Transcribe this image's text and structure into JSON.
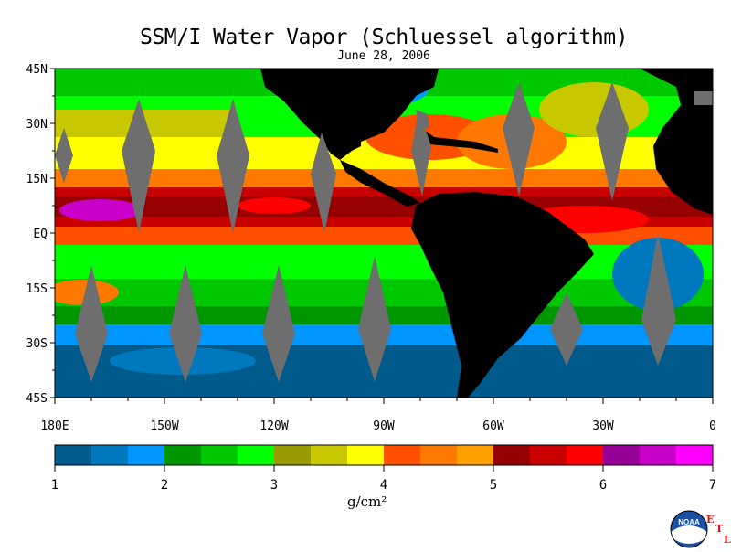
{
  "title": "SSM/I Water Vapor (Schluessel algorithm)",
  "date": "June 28, 2006",
  "lat_labels": [
    "45N",
    "30N",
    "15N",
    "EQ",
    "15S",
    "30S",
    "45S"
  ],
  "lon_labels": [
    "180E",
    "150W",
    "120W",
    "90W",
    "60W",
    "30W",
    "0"
  ],
  "colorbar": {
    "ticks": [
      "1",
      "2",
      "3",
      "4",
      "5",
      "6",
      "7"
    ],
    "unit": "g/cm²",
    "colors": [
      "#005a8c",
      "#0078be",
      "#0096ff",
      "#009600",
      "#00c800",
      "#00ff00",
      "#999900",
      "#c8c800",
      "#ffff00",
      "#ff5000",
      "#ff7800",
      "#ffa000",
      "#960000",
      "#c80000",
      "#ff0000",
      "#960096",
      "#c800c8",
      "#ff00ff"
    ]
  },
  "logo": {
    "text": "NOAA",
    "letters": [
      "E",
      "T",
      "L"
    ]
  },
  "legend_colors": {
    "land": "#000000",
    "no_data_swath_gap": "#6e6e6e"
  }
}
